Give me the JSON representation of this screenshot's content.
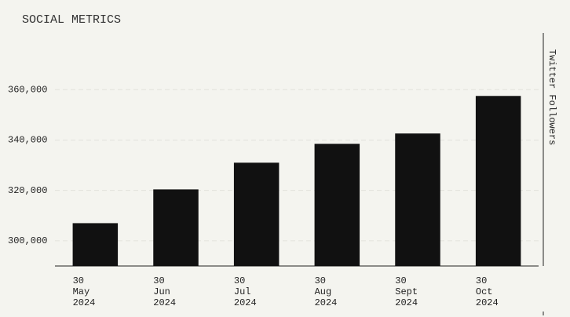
{
  "chart_data": {
    "type": "bar",
    "title": "SOCIAL METRICS",
    "y_label": "Twitter Followers",
    "categories": [
      [
        "30",
        "May",
        "2024"
      ],
      [
        "30",
        "Jun",
        "2024"
      ],
      [
        "30",
        "Jul",
        "2024"
      ],
      [
        "30",
        "Aug",
        "2024"
      ],
      [
        "30",
        "Sept",
        "2024"
      ],
      [
        "30",
        "Oct",
        "2024"
      ]
    ],
    "values": [
      307000,
      320400,
      331000,
      338500,
      342600,
      357500
    ],
    "color": "#111111",
    "ylim": [
      290000,
      382500
    ],
    "yticks": [
      {
        "value": 300000,
        "label": "300,000"
      },
      {
        "value": 320000,
        "label": "320,000"
      },
      {
        "value": 340000,
        "label": "340,000"
      },
      {
        "value": 360000,
        "label": "360,000"
      }
    ],
    "grid": true
  }
}
